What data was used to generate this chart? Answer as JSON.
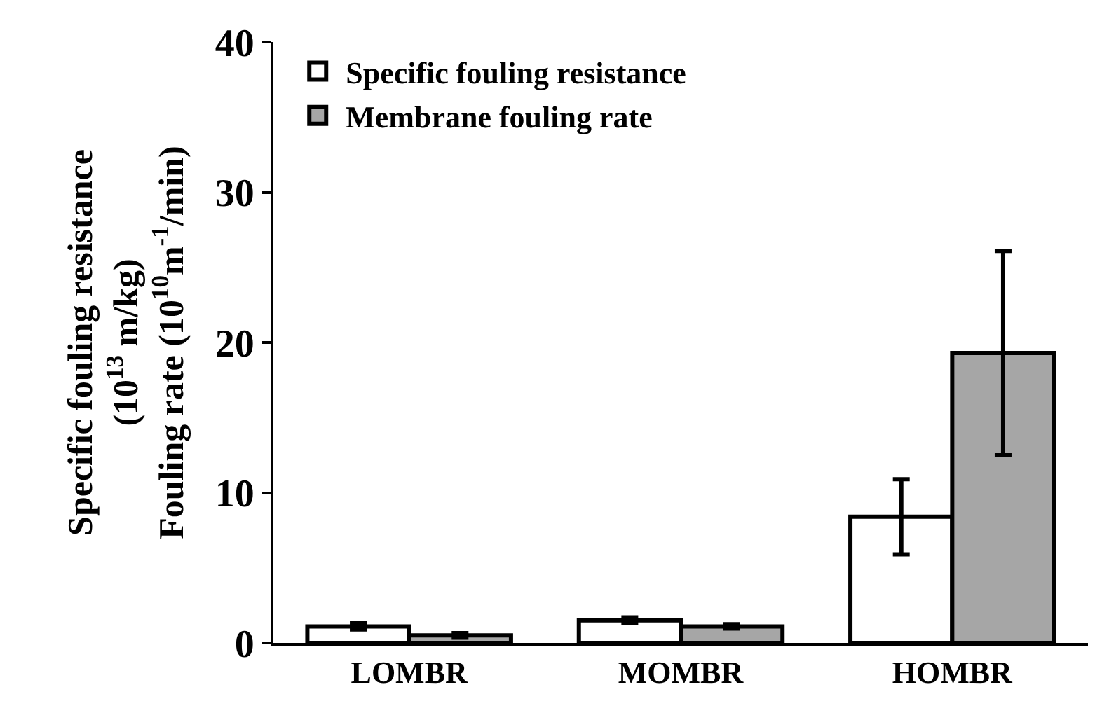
{
  "chart_data": {
    "type": "bar",
    "ylabel": "Specific fouling resistance\n(10$^{13}$ m/kg)\nFouling rate (10$^{10}$m$^{-1}$/min)",
    "categories": [
      "LOMBR",
      "MOMBR",
      "HOMBR"
    ],
    "series": [
      {
        "name": "Specific fouling resistance",
        "color": "#ffffff",
        "values": [
          1.1,
          1.5,
          8.4
        ],
        "errors": [
          0.2,
          0.2,
          2.5
        ]
      },
      {
        "name": "Membrane fouling rate",
        "color": "#a6a6a6",
        "values": [
          0.5,
          1.1,
          19.3
        ],
        "errors": [
          0.15,
          0.15,
          6.8
        ]
      }
    ],
    "ylim": [
      0,
      40
    ],
    "yticks": [
      0,
      10,
      20,
      30,
      40
    ],
    "legend": "top left"
  }
}
